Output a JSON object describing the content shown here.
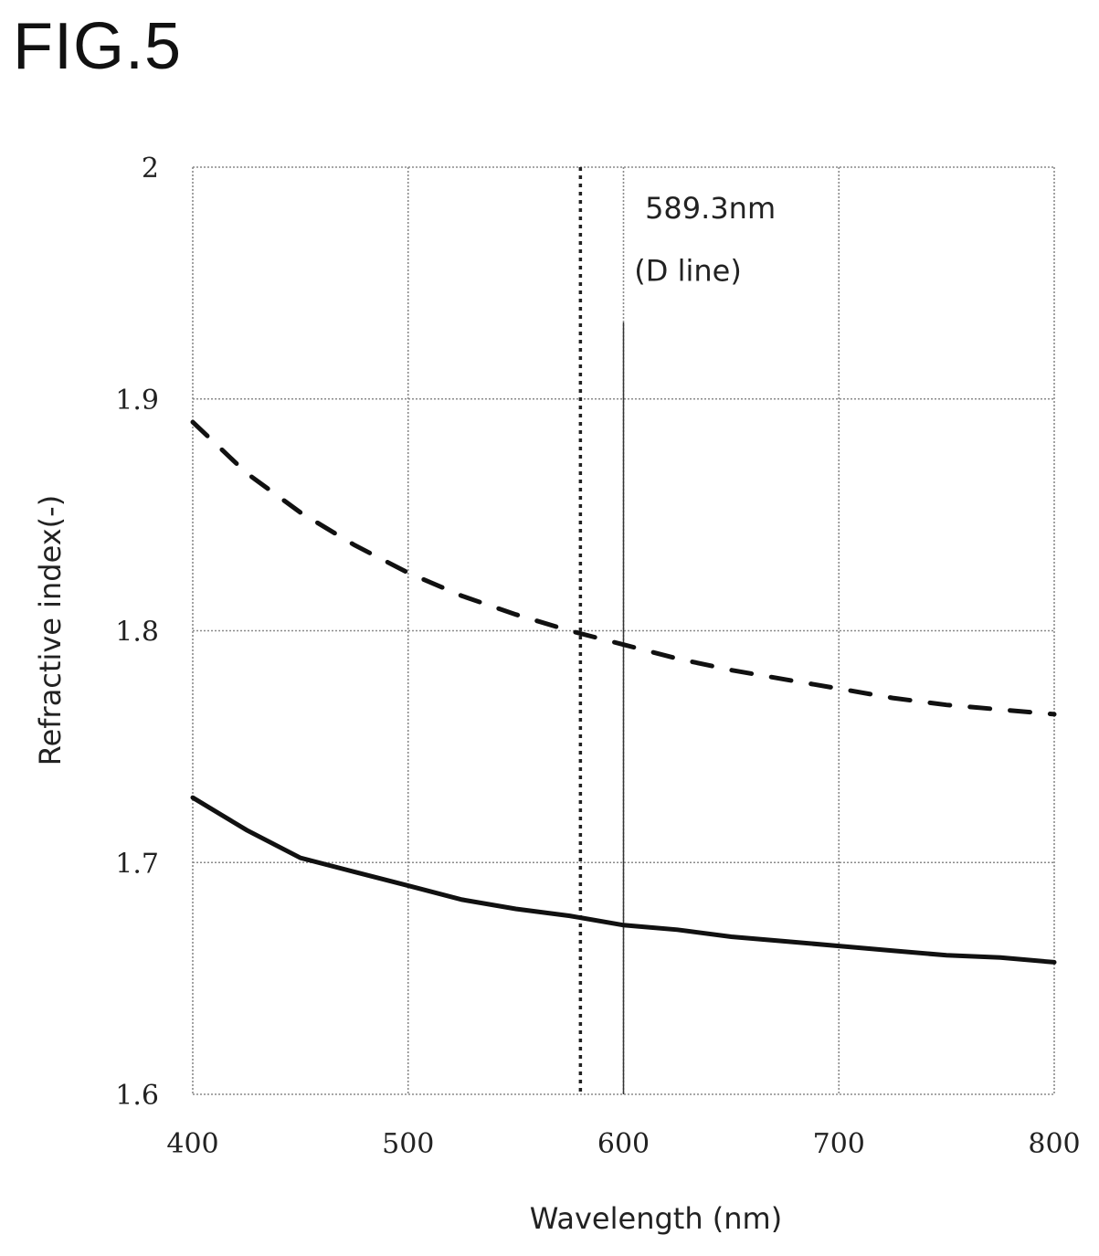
{
  "figure_label": "FIG.5",
  "chart_data": {
    "type": "line",
    "title": "",
    "xlabel": "Wavelength (nm)",
    "ylabel": "Refractive index(-)",
    "xlim": [
      400,
      800
    ],
    "ylim": [
      1.6,
      2.0
    ],
    "xticks": [
      400,
      500,
      600,
      700,
      800
    ],
    "xtick_labels": [
      "400",
      "500",
      "600",
      "700",
      "800"
    ],
    "yticks": [
      1.6,
      1.7,
      1.8,
      1.9,
      2.0
    ],
    "ytick_labels": [
      "1.6",
      "1.7",
      "1.8",
      "1.9",
      "2"
    ],
    "grid": true,
    "series": [
      {
        "style": "dashed",
        "color": "#111111",
        "x": [
          400,
          425,
          450,
          475,
          500,
          525,
          550,
          575,
          600,
          625,
          650,
          675,
          700,
          725,
          750,
          775,
          800
        ],
        "y": [
          1.89,
          1.868,
          1.851,
          1.837,
          1.825,
          1.815,
          1.807,
          1.8,
          1.794,
          1.788,
          1.783,
          1.779,
          1.775,
          1.771,
          1.768,
          1.766,
          1.764
        ]
      },
      {
        "style": "solid",
        "color": "#111111",
        "x": [
          400,
          425,
          450,
          475,
          500,
          525,
          550,
          575,
          600,
          625,
          650,
          675,
          700,
          725,
          750,
          775,
          800
        ],
        "y": [
          1.728,
          1.714,
          1.702,
          1.696,
          1.69,
          1.684,
          1.68,
          1.677,
          1.673,
          1.671,
          1.668,
          1.666,
          1.664,
          1.662,
          1.66,
          1.659,
          1.657
        ]
      }
    ],
    "reference_lines": [
      {
        "x": 580,
        "style": "dotted"
      },
      {
        "x": 600,
        "style": "solid-thin",
        "y_top": 1.933
      }
    ],
    "annotations": [
      {
        "text": "589.3nm",
        "x": 610,
        "y": 1.978
      },
      {
        "text": "(D line)",
        "x": 605,
        "y": 1.951
      }
    ]
  }
}
